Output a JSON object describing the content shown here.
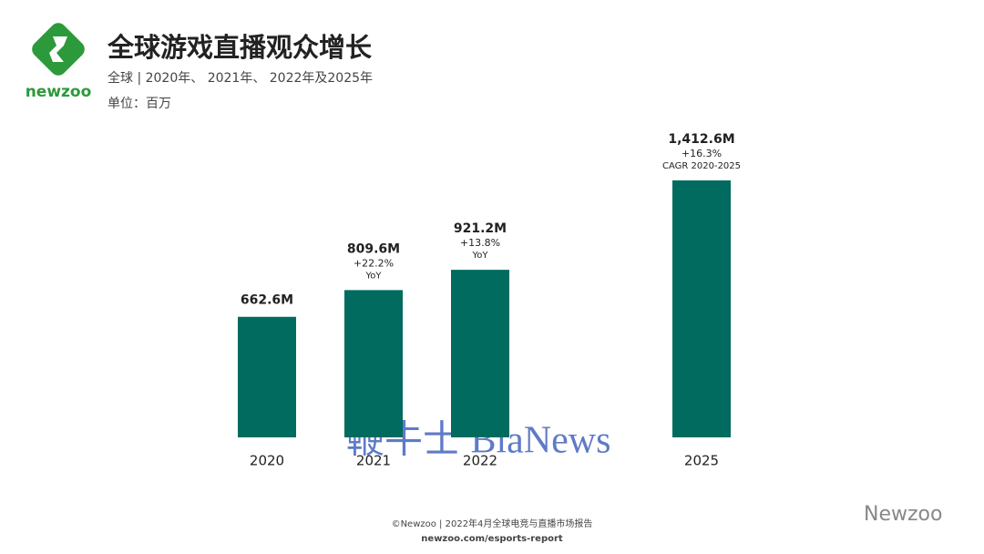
{
  "brand": "newzoo",
  "chart_data": {
    "type": "bar",
    "title": "全球游戏直播观众增长",
    "subtitle": "全球 | 2020年、 2021年、 2022年及2025年",
    "unit": "单位：百万",
    "categories": [
      "2020",
      "2021",
      "2022",
      "2025"
    ],
    "values": [
      662.6,
      809.6,
      921.2,
      1412.6
    ],
    "value_labels": [
      "662.6M",
      "809.6M",
      "921.2M",
      "1,412.6M"
    ],
    "annotations": [
      [
        "+22.2%",
        "YoY"
      ],
      [
        "+13.8%",
        "YoY"
      ],
      [
        "+16.3%",
        "CAGR 2020-2025"
      ]
    ],
    "color": "#006b5e"
  },
  "footer": {
    "source": "©Newzoo | 2022年4月全球电竞与直播市场报告",
    "url": "newzoo.com/esports-report"
  },
  "watermarks": [
    "鞭牛士 BiaNews",
    "Newzoo"
  ]
}
